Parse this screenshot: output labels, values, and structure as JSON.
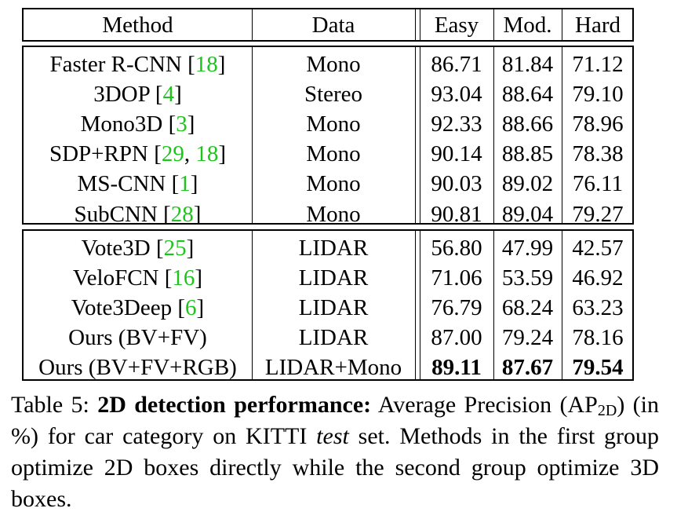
{
  "table": {
    "header": {
      "method": "Method",
      "data": "Data",
      "easy": "Easy",
      "mod": "Mod.",
      "hard": "Hard"
    },
    "group1": [
      {
        "name": "Faster R-CNN ",
        "cites": [
          "18"
        ],
        "data": "Mono",
        "easy": "86.71",
        "mod": "81.84",
        "hard": "71.12"
      },
      {
        "name": "3DOP ",
        "cites": [
          "4"
        ],
        "data": "Stereo",
        "easy": "93.04",
        "mod": "88.64",
        "hard": "79.10"
      },
      {
        "name": "Mono3D ",
        "cites": [
          "3"
        ],
        "data": "Mono",
        "easy": "92.33",
        "mod": "88.66",
        "hard": "78.96"
      },
      {
        "name": "SDP+RPN ",
        "cites": [
          "29",
          "18"
        ],
        "data": "Mono",
        "easy": "90.14",
        "mod": "88.85",
        "hard": "78.38"
      },
      {
        "name": "MS-CNN ",
        "cites": [
          "1"
        ],
        "data": "Mono",
        "easy": "90.03",
        "mod": "89.02",
        "hard": "76.11"
      },
      {
        "name": "SubCNN ",
        "cites": [
          "28"
        ],
        "data": "Mono",
        "easy": "90.81",
        "mod": "89.04",
        "hard": "79.27"
      }
    ],
    "group2": [
      {
        "name": "Vote3D ",
        "cites": [
          "25"
        ],
        "data": "LIDAR",
        "easy": "56.80",
        "mod": "47.99",
        "hard": "42.57"
      },
      {
        "name": "VeloFCN ",
        "cites": [
          "16"
        ],
        "data": "LIDAR",
        "easy": "71.06",
        "mod": "53.59",
        "hard": "46.92"
      },
      {
        "name": "Vote3Deep ",
        "cites": [
          "6"
        ],
        "data": "LIDAR",
        "easy": "76.79",
        "mod": "68.24",
        "hard": "63.23"
      },
      {
        "name": "Ours (BV+FV)",
        "cites": [],
        "data": "LIDAR",
        "easy": "87.00",
        "mod": "79.24",
        "hard": "78.16"
      },
      {
        "name": "Ours (BV+FV+RGB)",
        "cites": [],
        "data": "LIDAR+Mono",
        "easy": "89.11",
        "mod": "87.67",
        "hard": "79.54",
        "bold": true
      }
    ]
  },
  "caption": {
    "label": "Table 5: ",
    "bold": "2D detection performance:",
    "text1": " Average Precision (AP",
    "sub": "2D",
    "text2": ") (in %) for car category on KITTI ",
    "italic": "test",
    "text3": " set. Methods in the first group optimize 2D boxes directly while the second group optimize 3D boxes."
  }
}
